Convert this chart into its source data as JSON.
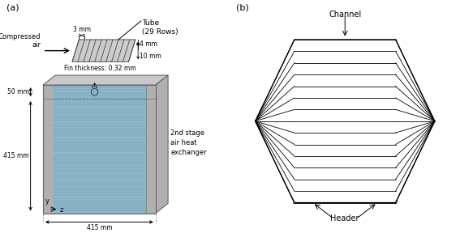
{
  "fig_width": 5.67,
  "fig_height": 2.88,
  "bg_color": "#ffffff",
  "panel_a_label": "(a)",
  "panel_b_label": "(b)",
  "tube_detail": {
    "label_tube": "Tube\n(29 Rows)",
    "label_fin": "Fin thickness: 0.32 mm",
    "label_3mm": "3 mm",
    "label_4mm": "4 mm",
    "label_10mm": "10 mm"
  },
  "hx_block": {
    "label_50mm": "50 mm",
    "label_415h": "415 mm",
    "label_415w": "415 mm",
    "label_stage": "2nd stage\nair heat\nexchanger",
    "label_y": "y",
    "label_z": "z",
    "label_compressed": "Compressed\nair",
    "core_color": "#8fb8c8",
    "side_color": "#b0b0b0",
    "top_color": "#c8c8c8"
  },
  "panel_b": {
    "label_channel": "Channel",
    "label_header": "Header",
    "n_channels": 14
  }
}
